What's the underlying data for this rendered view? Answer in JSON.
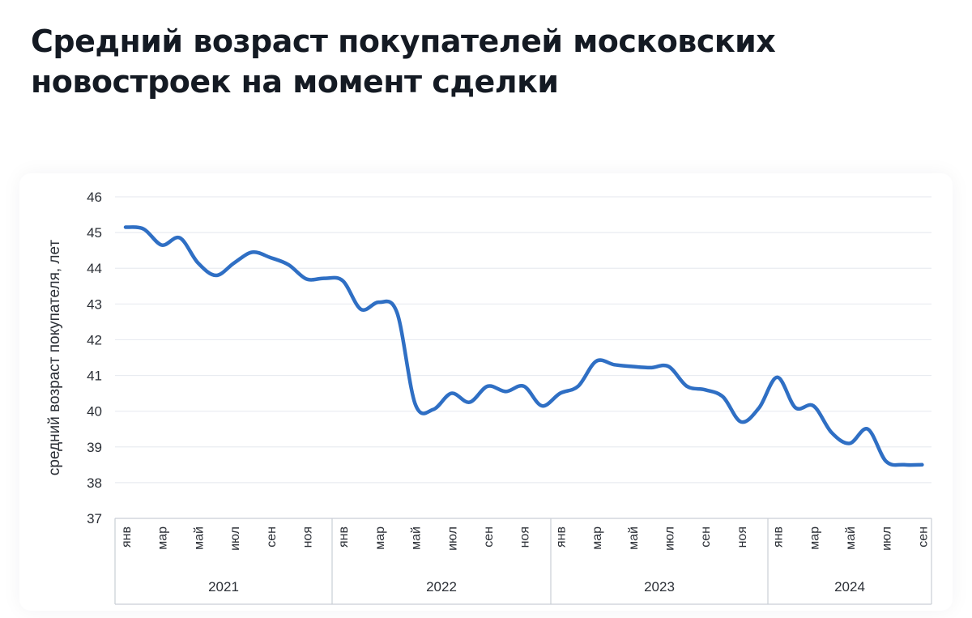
{
  "header": {
    "title": "Средний возраст покупателей московских новостроек на момент сделки"
  },
  "chart_data": {
    "type": "line",
    "title": "Средний возраст покупателей московских новостроек на момент сделки",
    "ylabel": "средний возраст покупателя, лет",
    "xlabel": "",
    "ylim": [
      37,
      46
    ],
    "yticks": [
      37,
      38,
      39,
      40,
      41,
      42,
      43,
      44,
      45,
      46
    ],
    "grid": true,
    "line_color": "#2f6fc4",
    "x_month_labels": [
      "янв",
      "мар",
      "май",
      "июл",
      "сен",
      "ноя"
    ],
    "years": [
      "2021",
      "2022",
      "2023",
      "2024"
    ],
    "x_2024_labels": [
      "янв",
      "мар",
      "май",
      "июл",
      "сен"
    ],
    "series": [
      {
        "values": [
          45.15,
          45.1,
          44.65,
          44.85,
          44.15,
          43.8,
          44.15,
          44.45,
          44.3,
          44.1,
          43.7,
          43.72,
          43.65,
          42.85,
          43.05,
          42.75,
          40.2,
          40.05,
          40.5,
          40.25,
          40.7,
          40.55,
          40.7,
          40.15,
          40.5,
          40.7,
          41.4,
          41.3,
          41.25,
          41.22,
          41.25,
          40.7,
          40.6,
          40.4,
          39.7,
          40.1,
          40.95,
          40.1,
          40.15,
          39.4,
          39.1,
          39.5,
          38.6,
          38.5,
          38.5
        ]
      }
    ]
  }
}
